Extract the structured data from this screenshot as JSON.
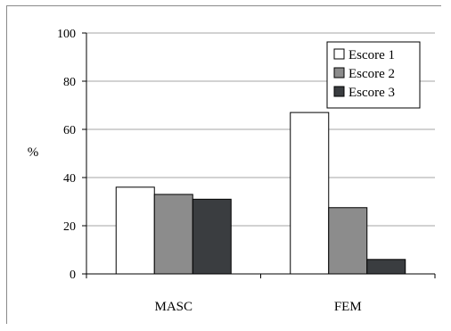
{
  "chart_data": {
    "type": "bar",
    "title": "",
    "xlabel": "",
    "ylabel": "%",
    "ylim": [
      0,
      100
    ],
    "yticks": [
      0,
      20,
      40,
      60,
      80,
      100
    ],
    "grid": true,
    "legend_position": "top-right",
    "categories": [
      "MASC",
      "FEM"
    ],
    "series": [
      {
        "name": "Escore 1",
        "color": "#ffffff",
        "values": [
          36,
          67
        ]
      },
      {
        "name": "Escore 2",
        "color": "#8c8c8c",
        "values": [
          33,
          27.5
        ]
      },
      {
        "name": "Escore 3",
        "color": "#3a3d40",
        "values": [
          31,
          6
        ]
      }
    ]
  }
}
